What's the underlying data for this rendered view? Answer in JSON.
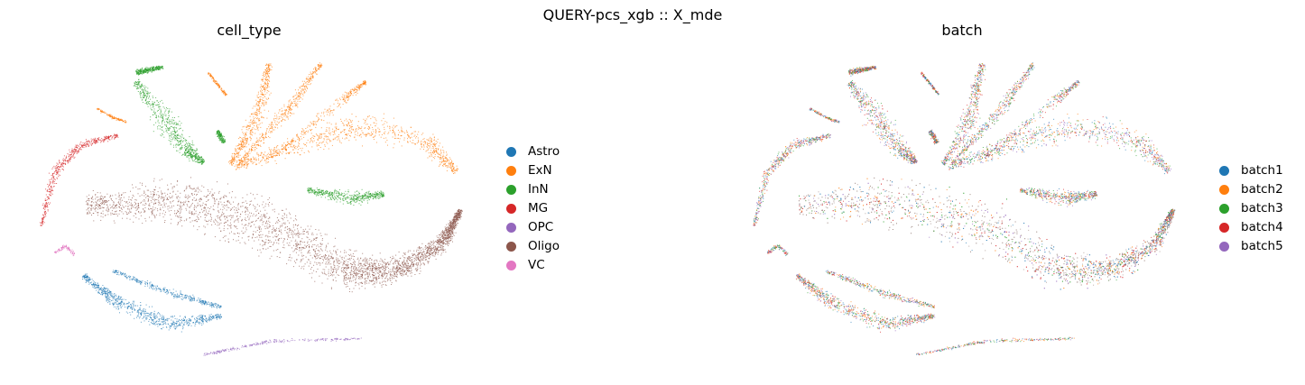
{
  "suptitle": "QUERY-pcs_xgb :: X_mde",
  "chart_data": [
    {
      "type": "scatter",
      "title": "cell_type",
      "xlabel": "",
      "ylabel": "",
      "grid": false,
      "axes_visible": false,
      "legend_placement": "right",
      "series": [
        {
          "name": "Astro",
          "color": "#1f77b4"
        },
        {
          "name": "ExN",
          "color": "#ff7f0e"
        },
        {
          "name": "InN",
          "color": "#2ca02c"
        },
        {
          "name": "MG",
          "color": "#d62728"
        },
        {
          "name": "OPC",
          "color": "#9467bd"
        },
        {
          "name": "Oligo",
          "color": "#8c564b"
        },
        {
          "name": "VC",
          "color": "#e377c2"
        }
      ]
    },
    {
      "type": "scatter",
      "title": "batch",
      "xlabel": "",
      "ylabel": "",
      "grid": false,
      "axes_visible": false,
      "legend_placement": "right",
      "series": [
        {
          "name": "batch1",
          "color": "#1f77b4"
        },
        {
          "name": "batch2",
          "color": "#ff7f0e"
        },
        {
          "name": "batch3",
          "color": "#2ca02c"
        },
        {
          "name": "batch4",
          "color": "#d62728"
        },
        {
          "name": "batch5",
          "color": "#9467bd"
        }
      ]
    }
  ]
}
